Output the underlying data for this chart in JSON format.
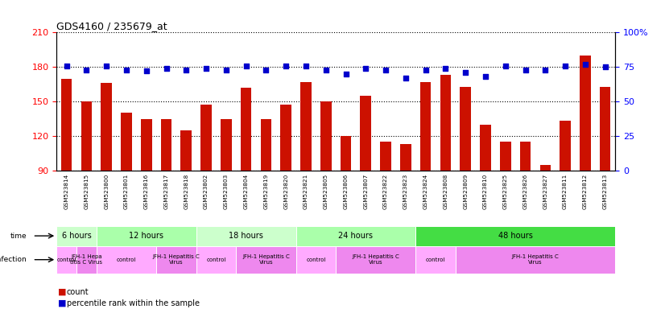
{
  "title": "GDS4160 / 235679_at",
  "samples": [
    "GSM523814",
    "GSM523815",
    "GSM523800",
    "GSM523801",
    "GSM523816",
    "GSM523817",
    "GSM523818",
    "GSM523802",
    "GSM523803",
    "GSM523804",
    "GSM523819",
    "GSM523820",
    "GSM523821",
    "GSM523805",
    "GSM523806",
    "GSM523807",
    "GSM523822",
    "GSM523823",
    "GSM523824",
    "GSM523808",
    "GSM523809",
    "GSM523810",
    "GSM523825",
    "GSM523826",
    "GSM523827",
    "GSM523811",
    "GSM523812",
    "GSM523813"
  ],
  "bar_values": [
    170,
    150,
    166,
    140,
    135,
    135,
    125,
    147,
    135,
    162,
    135,
    147,
    167,
    150,
    120,
    155,
    115,
    113,
    167,
    173,
    163,
    130,
    115,
    115,
    95,
    133,
    190,
    163
  ],
  "percentile_values": [
    76,
    73,
    76,
    73,
    72,
    74,
    73,
    74,
    73,
    76,
    73,
    76,
    76,
    73,
    70,
    74,
    73,
    67,
    73,
    74,
    71,
    68,
    76,
    73,
    73,
    76,
    77,
    75
  ],
  "bar_color": "#cc1100",
  "dot_color": "#0000cc",
  "ylim_left": [
    90,
    210
  ],
  "ylim_right": [
    0,
    100
  ],
  "yticks_left": [
    90,
    120,
    150,
    180,
    210
  ],
  "yticks_right": [
    0,
    25,
    50,
    75,
    100
  ],
  "time_groups": [
    {
      "label": "6 hours",
      "start": 0,
      "end": 2,
      "color": "#ccffcc"
    },
    {
      "label": "12 hours",
      "start": 2,
      "end": 7,
      "color": "#aaffaa"
    },
    {
      "label": "18 hours",
      "start": 7,
      "end": 12,
      "color": "#ccffcc"
    },
    {
      "label": "24 hours",
      "start": 12,
      "end": 18,
      "color": "#aaffaa"
    },
    {
      "label": "48 hours",
      "start": 18,
      "end": 28,
      "color": "#44dd44"
    }
  ],
  "infection_groups": [
    {
      "label": "control",
      "start": 0,
      "end": 1,
      "color": "#ffaaff"
    },
    {
      "label": "JFH-1 Hepa\ntitis C Virus",
      "start": 1,
      "end": 2,
      "color": "#ee88ee"
    },
    {
      "label": "control",
      "start": 2,
      "end": 5,
      "color": "#ffaaff"
    },
    {
      "label": "JFH-1 Hepatitis C\nVirus",
      "start": 5,
      "end": 7,
      "color": "#ee88ee"
    },
    {
      "label": "control",
      "start": 7,
      "end": 9,
      "color": "#ffaaff"
    },
    {
      "label": "JFH-1 Hepatitis C\nVirus",
      "start": 9,
      "end": 12,
      "color": "#ee88ee"
    },
    {
      "label": "control",
      "start": 12,
      "end": 14,
      "color": "#ffaaff"
    },
    {
      "label": "JFH-1 Hepatitis C\nVirus",
      "start": 14,
      "end": 18,
      "color": "#ee88ee"
    },
    {
      "label": "control",
      "start": 18,
      "end": 20,
      "color": "#ffaaff"
    },
    {
      "label": "JFH-1 Hepatitis C\nVirus",
      "start": 20,
      "end": 28,
      "color": "#ee88ee"
    }
  ],
  "background_color": "#ffffff",
  "xticklabel_bg": "#e8e8e8"
}
